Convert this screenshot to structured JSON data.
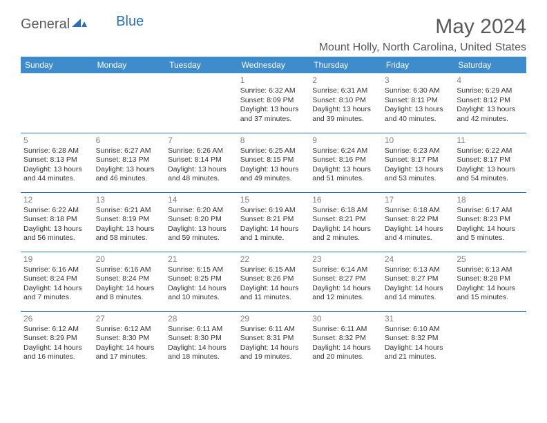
{
  "logo": {
    "text1": "General",
    "text2": "Blue"
  },
  "title": "May 2024",
  "location": "Mount Holly, North Carolina, United States",
  "colors": {
    "header_bg": "#3e8ccc",
    "header_text": "#ffffff",
    "border": "#2a70b8",
    "title_text": "#595959",
    "daynum": "#808080",
    "body_text": "#333333"
  },
  "weekdays": [
    "Sunday",
    "Monday",
    "Tuesday",
    "Wednesday",
    "Thursday",
    "Friday",
    "Saturday"
  ],
  "weeks": [
    [
      null,
      null,
      null,
      {
        "n": "1",
        "sr": "6:32 AM",
        "ss": "8:09 PM",
        "dh": "13",
        "dm": "37"
      },
      {
        "n": "2",
        "sr": "6:31 AM",
        "ss": "8:10 PM",
        "dh": "13",
        "dm": "39"
      },
      {
        "n": "3",
        "sr": "6:30 AM",
        "ss": "8:11 PM",
        "dh": "13",
        "dm": "40"
      },
      {
        "n": "4",
        "sr": "6:29 AM",
        "ss": "8:12 PM",
        "dh": "13",
        "dm": "42"
      }
    ],
    [
      {
        "n": "5",
        "sr": "6:28 AM",
        "ss": "8:13 PM",
        "dh": "13",
        "dm": "44"
      },
      {
        "n": "6",
        "sr": "6:27 AM",
        "ss": "8:13 PM",
        "dh": "13",
        "dm": "46"
      },
      {
        "n": "7",
        "sr": "6:26 AM",
        "ss": "8:14 PM",
        "dh": "13",
        "dm": "48"
      },
      {
        "n": "8",
        "sr": "6:25 AM",
        "ss": "8:15 PM",
        "dh": "13",
        "dm": "49"
      },
      {
        "n": "9",
        "sr": "6:24 AM",
        "ss": "8:16 PM",
        "dh": "13",
        "dm": "51"
      },
      {
        "n": "10",
        "sr": "6:23 AM",
        "ss": "8:17 PM",
        "dh": "13",
        "dm": "53"
      },
      {
        "n": "11",
        "sr": "6:22 AM",
        "ss": "8:17 PM",
        "dh": "13",
        "dm": "54"
      }
    ],
    [
      {
        "n": "12",
        "sr": "6:22 AM",
        "ss": "8:18 PM",
        "dh": "13",
        "dm": "56"
      },
      {
        "n": "13",
        "sr": "6:21 AM",
        "ss": "8:19 PM",
        "dh": "13",
        "dm": "58"
      },
      {
        "n": "14",
        "sr": "6:20 AM",
        "ss": "8:20 PM",
        "dh": "13",
        "dm": "59"
      },
      {
        "n": "15",
        "sr": "6:19 AM",
        "ss": "8:21 PM",
        "dh": "14",
        "dm": "1"
      },
      {
        "n": "16",
        "sr": "6:18 AM",
        "ss": "8:21 PM",
        "dh": "14",
        "dm": "2"
      },
      {
        "n": "17",
        "sr": "6:18 AM",
        "ss": "8:22 PM",
        "dh": "14",
        "dm": "4"
      },
      {
        "n": "18",
        "sr": "6:17 AM",
        "ss": "8:23 PM",
        "dh": "14",
        "dm": "5"
      }
    ],
    [
      {
        "n": "19",
        "sr": "6:16 AM",
        "ss": "8:24 PM",
        "dh": "14",
        "dm": "7"
      },
      {
        "n": "20",
        "sr": "6:16 AM",
        "ss": "8:24 PM",
        "dh": "14",
        "dm": "8"
      },
      {
        "n": "21",
        "sr": "6:15 AM",
        "ss": "8:25 PM",
        "dh": "14",
        "dm": "10"
      },
      {
        "n": "22",
        "sr": "6:15 AM",
        "ss": "8:26 PM",
        "dh": "14",
        "dm": "11"
      },
      {
        "n": "23",
        "sr": "6:14 AM",
        "ss": "8:27 PM",
        "dh": "14",
        "dm": "12"
      },
      {
        "n": "24",
        "sr": "6:13 AM",
        "ss": "8:27 PM",
        "dh": "14",
        "dm": "14"
      },
      {
        "n": "25",
        "sr": "6:13 AM",
        "ss": "8:28 PM",
        "dh": "14",
        "dm": "15"
      }
    ],
    [
      {
        "n": "26",
        "sr": "6:12 AM",
        "ss": "8:29 PM",
        "dh": "14",
        "dm": "16"
      },
      {
        "n": "27",
        "sr": "6:12 AM",
        "ss": "8:30 PM",
        "dh": "14",
        "dm": "17"
      },
      {
        "n": "28",
        "sr": "6:11 AM",
        "ss": "8:30 PM",
        "dh": "14",
        "dm": "18"
      },
      {
        "n": "29",
        "sr": "6:11 AM",
        "ss": "8:31 PM",
        "dh": "14",
        "dm": "19"
      },
      {
        "n": "30",
        "sr": "6:11 AM",
        "ss": "8:32 PM",
        "dh": "14",
        "dm": "20"
      },
      {
        "n": "31",
        "sr": "6:10 AM",
        "ss": "8:32 PM",
        "dh": "14",
        "dm": "21"
      },
      null
    ]
  ],
  "labels": {
    "sunrise": "Sunrise:",
    "sunset": "Sunset:",
    "daylight": "Daylight:",
    "hours": "hours",
    "and": "and",
    "minutes_singular": "minute.",
    "minutes_plural": "minutes."
  }
}
